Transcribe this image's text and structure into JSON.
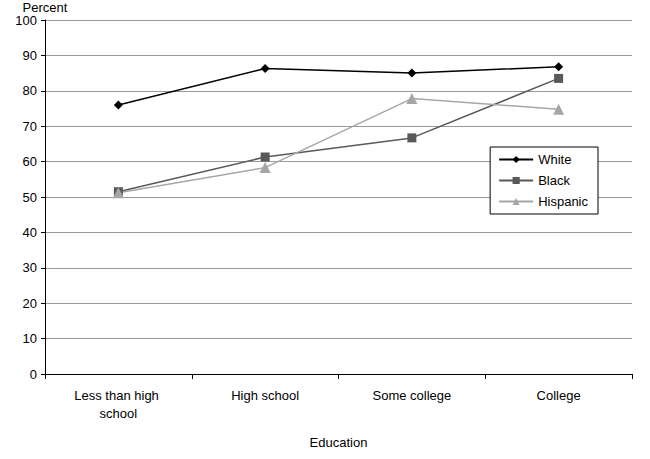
{
  "chart_data": {
    "type": "line",
    "x_label": "Education",
    "y_label": "Percent",
    "categories": [
      "Less than high school",
      "High school",
      "Some college",
      "College"
    ],
    "series": [
      {
        "name": "White",
        "color": "#000000",
        "marker": "diamond",
        "values": [
          76.0,
          86.3,
          85.0,
          86.8
        ]
      },
      {
        "name": "Black",
        "color": "#595959",
        "marker": "square",
        "values": [
          51.5,
          61.3,
          66.7,
          83.5
        ]
      },
      {
        "name": "Hispanic",
        "color": "#a6a6a6",
        "marker": "triangle",
        "values": [
          51.2,
          58.3,
          77.8,
          74.8
        ]
      }
    ],
    "ylim": [
      0,
      100
    ],
    "yticks": [
      0,
      10,
      20,
      30,
      40,
      50,
      60,
      70,
      80,
      90,
      100
    ],
    "grid": true,
    "legend": "right"
  }
}
